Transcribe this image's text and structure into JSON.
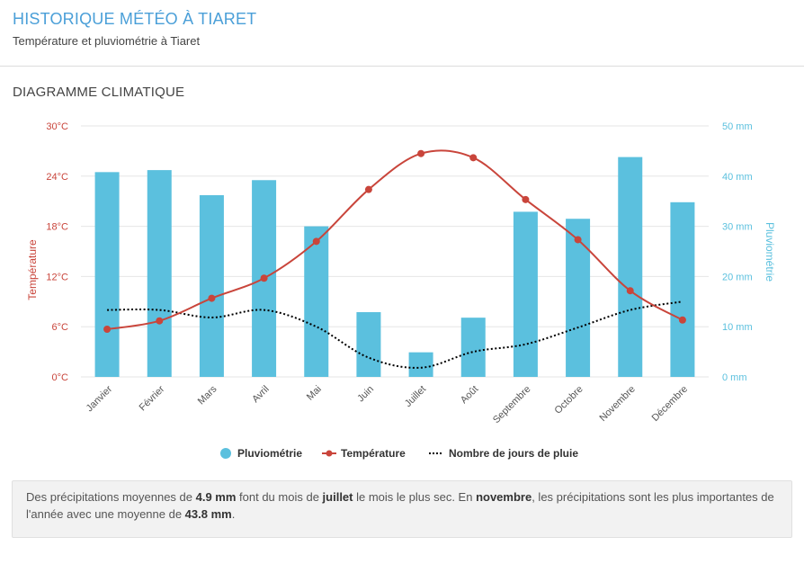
{
  "header": {
    "title": "HISTORIQUE MÉTÉO À TIARET",
    "subtitle": "Température et pluviométrie à Tiaret"
  },
  "section": {
    "title": "DIAGRAMME CLIMATIQUE"
  },
  "colors": {
    "bars": "#5bc0de",
    "temperature": "#c9453b",
    "rainy_days": "#000000",
    "left_axis": "#c9453b",
    "right_axis": "#5bc0de"
  },
  "chart_data": {
    "type": "bar",
    "categories": [
      "Janvier",
      "Février",
      "Mars",
      "Avril",
      "Mai",
      "Juin",
      "Juillet",
      "Août",
      "Septembre",
      "Octobre",
      "Novembre",
      "Décembre"
    ],
    "y_left": {
      "label": "Température",
      "ticks": [
        "0°C",
        "6°C",
        "12°C",
        "18°C",
        "24°C",
        "30°C"
      ],
      "range": [
        0,
        30
      ]
    },
    "y_right": {
      "label": "Pluviométrie",
      "ticks": [
        "0 mm",
        "10 mm",
        "20 mm",
        "30 mm",
        "40 mm",
        "50 mm"
      ],
      "range": [
        0,
        50
      ]
    },
    "grid": true,
    "legend_position": "bottom",
    "series": [
      {
        "name": "Pluviométrie",
        "type": "bar",
        "axis": "right",
        "values": [
          40.8,
          41.2,
          36.2,
          39.2,
          30.0,
          12.9,
          4.9,
          11.8,
          32.9,
          31.5,
          43.8,
          34.8
        ]
      },
      {
        "name": "Température",
        "type": "line",
        "axis": "left",
        "values": [
          5.7,
          6.7,
          9.4,
          11.8,
          16.2,
          22.4,
          26.7,
          26.2,
          21.2,
          16.4,
          10.3,
          6.8
        ]
      },
      {
        "name": "Nombre de jours de pluie",
        "type": "line",
        "axis": "left",
        "values": [
          8.0,
          8.0,
          7.1,
          8.0,
          6.0,
          2.3,
          1.1,
          3.0,
          3.9,
          5.9,
          8.0,
          9.0
        ]
      }
    ]
  },
  "info": {
    "t1": "Des précipitations moyennes de ",
    "v1": "4.9 mm",
    "t2": " font du mois de ",
    "v2": "juillet",
    "t3": " le mois le plus sec. En ",
    "v3": "novembre",
    "t4": ", les précipitations sont les plus importantes de l'année avec une moyenne de ",
    "v4": "43.8 mm",
    "t5": "."
  }
}
